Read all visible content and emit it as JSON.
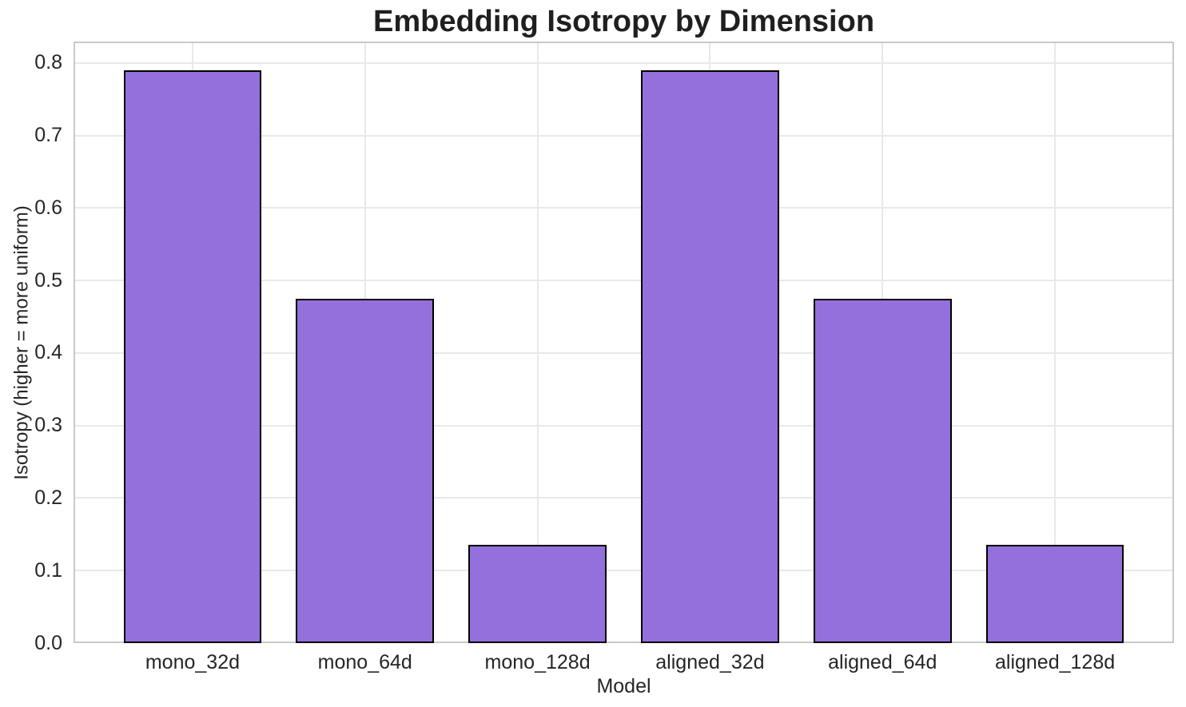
{
  "chart_data": {
    "type": "bar",
    "title": "Embedding Isotropy by Dimension",
    "xlabel": "Model",
    "ylabel": "Isotropy (higher = more uniform)",
    "categories": [
      "mono_32d",
      "mono_64d",
      "mono_128d",
      "aligned_32d",
      "aligned_64d",
      "aligned_128d"
    ],
    "values": [
      0.79,
      0.475,
      0.135,
      0.79,
      0.475,
      0.135
    ],
    "ylim": [
      0,
      0.8295
    ],
    "yticks": [
      0.0,
      0.1,
      0.2,
      0.3,
      0.4,
      0.5,
      0.6,
      0.7,
      0.8
    ],
    "ytick_labels": [
      "0.0",
      "0.1",
      "0.2",
      "0.3",
      "0.4",
      "0.5",
      "0.6",
      "0.7",
      "0.8"
    ],
    "grid": true,
    "legend_position": "none",
    "bar_color": "#9370DB",
    "bar_edge_color": "#000000",
    "grid_color": "#e9e9e9",
    "spine_color": "#c9c9c9",
    "text_color": "#262626"
  }
}
